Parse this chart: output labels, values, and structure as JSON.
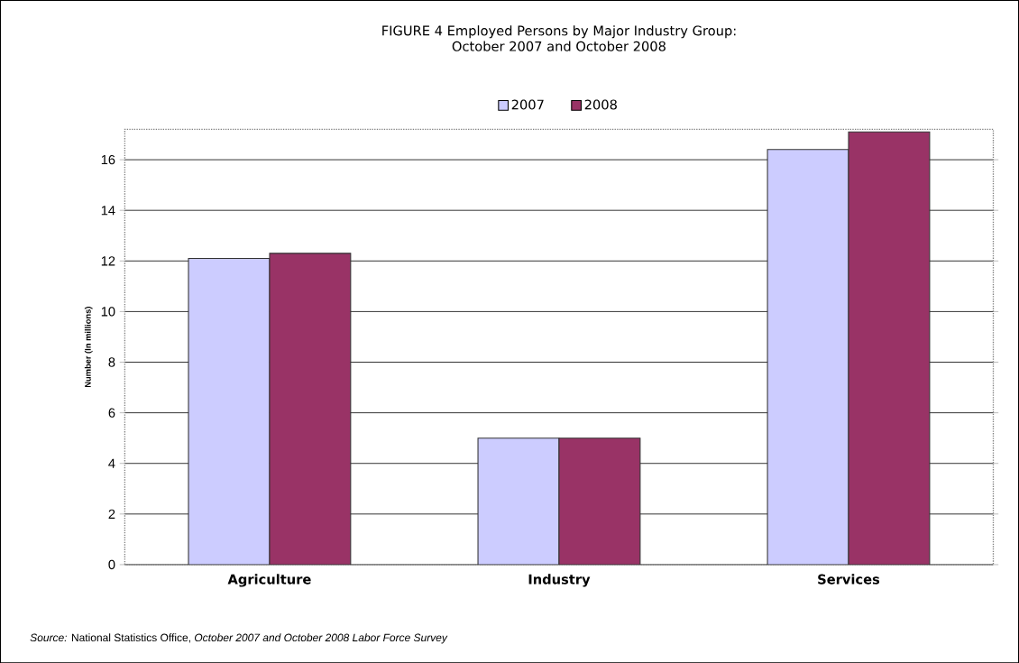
{
  "chart_data": {
    "type": "bar",
    "title": "FIGURE 4  Employed Persons by Major Industry Group:",
    "subtitle": "October 2007 and October 2008",
    "ylabel": "Number (In millions)",
    "categories": [
      "Agriculture",
      "Industry",
      "Services"
    ],
    "series": [
      {
        "name": "2007",
        "color": "#ccccff",
        "values": [
          12.1,
          5.0,
          16.4
        ]
      },
      {
        "name": "2008",
        "color": "#993366",
        "values": [
          12.3,
          5.0,
          17.1
        ]
      }
    ],
    "ylim": [
      0,
      17.2
    ],
    "yticks": [
      0,
      2,
      4,
      6,
      8,
      10,
      12,
      14,
      16
    ],
    "grid": "y",
    "legend": "top",
    "annotations": [
      "*Source:*  National Statistics Office,  *October 2007 and October 2008 Labor Force Survey*"
    ]
  }
}
